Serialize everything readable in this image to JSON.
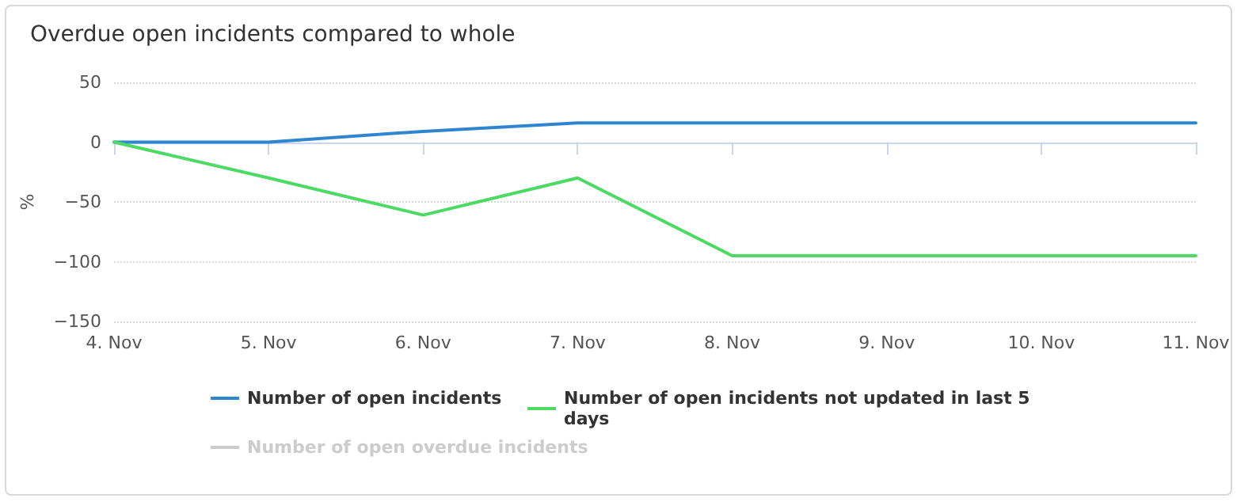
{
  "chart_data": {
    "type": "line",
    "title": "Overdue open incidents compared to whole",
    "ylabel": "%",
    "categories": [
      "4. Nov",
      "5. Nov",
      "6. Nov",
      "7. Nov",
      "8. Nov",
      "9. Nov",
      "10. Nov",
      "11. Nov"
    ],
    "series": [
      {
        "name": "Number of open incidents",
        "color": "#2f86d0",
        "values": [
          0,
          0,
          9,
          16,
          16,
          16,
          16,
          16
        ]
      },
      {
        "name": "Number of open incidents not updated in last 5 days",
        "color": "#4cd964",
        "values": [
          0,
          -30,
          -61,
          -30,
          -95,
          -95,
          -95,
          -95
        ]
      },
      {
        "name": "Number of open overdue incidents",
        "color": "#cccccc",
        "values": [
          null,
          null,
          null,
          null,
          null,
          null,
          null,
          null
        ]
      }
    ],
    "ylim": [
      -150,
      50
    ],
    "yticks": [
      -150,
      -100,
      -50,
      0,
      50
    ],
    "grid": "y",
    "legend": "bottom",
    "marker": "none",
    "line_style": "solid"
  }
}
